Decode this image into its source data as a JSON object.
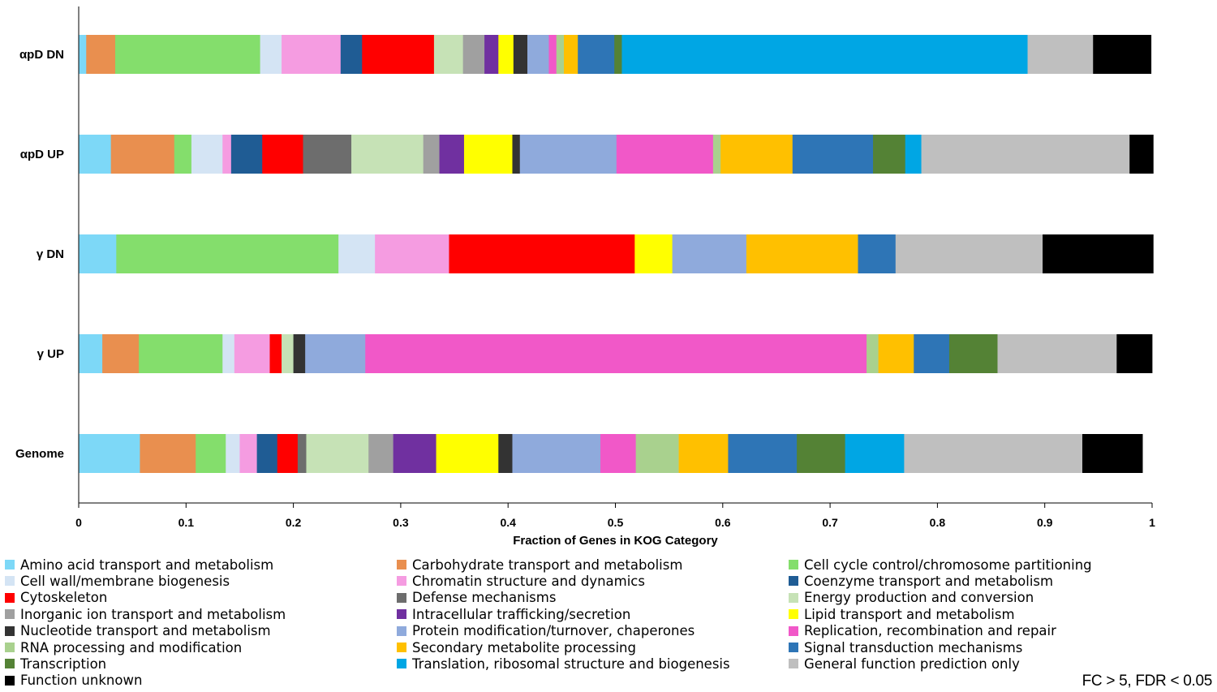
{
  "chart_data": {
    "type": "bar",
    "orientation": "horizontal",
    "stacked": true,
    "xlabel": "Fraction of Genes in KOG Category",
    "ylabel": "",
    "xlim": [
      0,
      1
    ],
    "xticks": [
      0,
      0.1,
      0.2,
      0.3,
      0.4,
      0.5,
      0.6,
      0.7,
      0.8,
      0.9,
      1
    ],
    "xtick_labels": [
      "0",
      "0.1",
      "0.2",
      "0.3",
      "0.4",
      "0.5",
      "0.6",
      "0.7",
      "0.8",
      "0.9",
      "1"
    ],
    "grid": false,
    "legend_position": "bottom",
    "categories": [
      "αpD DN",
      "αpD UP",
      "γ DN",
      "γ UP",
      "Genome"
    ],
    "series": [
      {
        "name": "Amino acid transport and metabolism",
        "color": "#7dd8f7",
        "values": [
          0.007,
          0.03,
          0.035,
          0.022,
          0.057
        ]
      },
      {
        "name": "Carbohydrate transport and metabolism",
        "color": "#e98f4f",
        "values": [
          0.027,
          0.059,
          0,
          0.034,
          0.052
        ]
      },
      {
        "name": "Cell cycle control/chromosome partitioning",
        "color": "#84de6c",
        "values": [
          0.135,
          0.016,
          0.207,
          0.078,
          0.028
        ]
      },
      {
        "name": "Cell wall/membrane biogenesis",
        "color": "#d4e4f4",
        "values": [
          0.02,
          0.029,
          0.034,
          0.011,
          0.013
        ]
      },
      {
        "name": "Chromatin structure and dynamics",
        "color": "#f59ce1",
        "values": [
          0.055,
          0.008,
          0.069,
          0.033,
          0.016
        ]
      },
      {
        "name": "Coenzyme transport and metabolism",
        "color": "#1f5c94",
        "values": [
          0.02,
          0.029,
          0,
          0,
          0.019
        ]
      },
      {
        "name": "Cytoskeleton",
        "color": "#ff0000",
        "values": [
          0.067,
          0.038,
          0.173,
          0.011,
          0.019
        ]
      },
      {
        "name": "Defense mechanisms",
        "color": "#6d6d6d",
        "values": [
          0,
          0.045,
          0,
          0,
          0.008
        ]
      },
      {
        "name": "Energy production and conversion",
        "color": "#c6e2b6",
        "values": [
          0.027,
          0.067,
          0,
          0.011,
          0.058
        ]
      },
      {
        "name": "Inorganic ion transport and metabolism",
        "color": "#a0a0a0",
        "values": [
          0.02,
          0.015,
          0,
          0,
          0.023
        ]
      },
      {
        "name": "Intracellular trafficking/secretion",
        "color": "#7030a0",
        "values": [
          0.013,
          0.023,
          0,
          0,
          0.04
        ]
      },
      {
        "name": "Lipid transport and metabolism",
        "color": "#ffff00",
        "values": [
          0.014,
          0.045,
          0.035,
          0,
          0.058
        ]
      },
      {
        "name": "Nucleotide transport and metabolism",
        "color": "#333333",
        "values": [
          0.013,
          0.007,
          0,
          0.011,
          0.013
        ]
      },
      {
        "name": "Protein modification/turnover, chaperones",
        "color": "#8faadc",
        "values": [
          0.02,
          0.09,
          0.069,
          0.056,
          0.082
        ]
      },
      {
        "name": "Replication, recombination and repair",
        "color": "#f158c8",
        "values": [
          0.007,
          0.09,
          0,
          0.467,
          0.033
        ]
      },
      {
        "name": "RNA processing and modification",
        "color": "#a9d18e",
        "values": [
          0.007,
          0.007,
          0,
          0.011,
          0.04
        ]
      },
      {
        "name": "Secondary metabolite processing",
        "color": "#ffc000",
        "values": [
          0.013,
          0.067,
          0.104,
          0.033,
          0.046
        ]
      },
      {
        "name": "Signal transduction mechanisms",
        "color": "#2e75b6",
        "values": [
          0.034,
          0.075,
          0.035,
          0.033,
          0.064
        ]
      },
      {
        "name": "Transcription",
        "color": "#548235",
        "values": [
          0.007,
          0.03,
          0,
          0.045,
          0.045
        ]
      },
      {
        "name": "Translation, ribosomal structure and biogenesis",
        "color": "#00a6e4",
        "values": [
          0.378,
          0.015,
          0,
          0,
          0.055
        ]
      },
      {
        "name": "General function prediction only",
        "color": "#bfbfbf",
        "values": [
          0.061,
          0.194,
          0.137,
          0.111,
          0.166
        ]
      },
      {
        "name": "Function unknown",
        "color": "#000000",
        "values": [
          0.054,
          0.022,
          0.103,
          0.033,
          0.056
        ]
      }
    ],
    "annotation": "FC > 5, FDR < 0.05"
  }
}
